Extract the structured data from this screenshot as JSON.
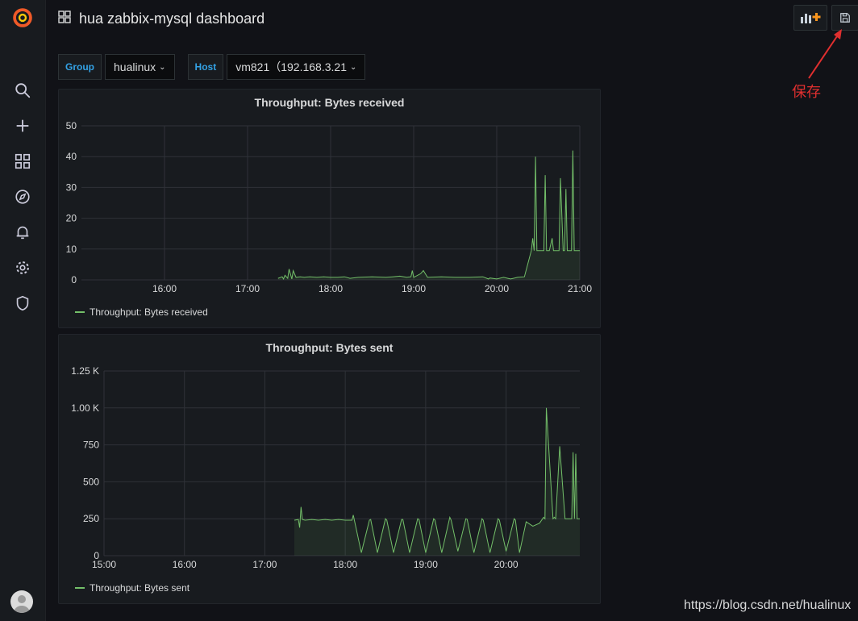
{
  "dashboard": {
    "title": "hua zabbix-mysql dashboard"
  },
  "variables": [
    {
      "label": "Group",
      "value": "hualinux"
    },
    {
      "label": "Host",
      "value": "vm821（192.168.3.21"
    }
  ],
  "annotation": {
    "text": "保存"
  },
  "watermark": "https://blog.csdn.net/hualinux",
  "colors": {
    "series": "#73bf69",
    "accent": "#33a2e5",
    "annotation": "#e02f2f"
  },
  "icons": {
    "sidebar": [
      "search-icon",
      "plus-icon",
      "dashboards-icon",
      "explore-icon",
      "alert-bell-icon",
      "gear-icon",
      "shield-icon"
    ]
  },
  "chart_data": [
    {
      "type": "line",
      "title": "Throughput: Bytes received",
      "legend": [
        "Throughput: Bytes received"
      ],
      "ylim": [
        0,
        50
      ],
      "yticks": [
        {
          "v": 0,
          "label": "0"
        },
        {
          "v": 10,
          "label": "10"
        },
        {
          "v": 20,
          "label": "20"
        },
        {
          "v": 30,
          "label": "30"
        },
        {
          "v": 40,
          "label": "40"
        },
        {
          "v": 50,
          "label": "50"
        }
      ],
      "xlim": [
        "15:00",
        "21:00"
      ],
      "xticks": [
        "16:00",
        "17:00",
        "18:00",
        "19:00",
        "20:00",
        "21:00"
      ],
      "fill": true,
      "series": [
        {
          "x": [
            "17:22",
            "17:25",
            "17:26",
            "17:27",
            "17:29",
            "17:30",
            "17:32",
            "17:33",
            "17:35",
            "17:38",
            "17:41",
            "17:45",
            "17:50",
            "17:55",
            "18:00",
            "18:05",
            "18:10",
            "18:14",
            "18:20",
            "18:30",
            "18:40",
            "18:45",
            "18:50",
            "18:55",
            "18:58",
            "18:59",
            "19:00",
            "19:05",
            "19:07",
            "19:10",
            "19:20",
            "19:30",
            "19:40",
            "19:50",
            "19:54",
            "19:55",
            "20:00",
            "20:05",
            "20:08",
            "20:10",
            "20:15",
            "20:20",
            "20:25",
            "20:26",
            "20:27",
            "20:28",
            "20:29",
            "20:30",
            "20:32",
            "20:34",
            "20:35",
            "20:36",
            "20:37",
            "20:38",
            "20:40",
            "20:41",
            "20:42",
            "20:43",
            "20:44",
            "20:45",
            "20:46",
            "20:48",
            "20:49",
            "20:50",
            "20:51",
            "20:52",
            "20:53",
            "20:54",
            "20:55",
            "20:56",
            "20:57",
            "20:58",
            "20:59",
            "21:00"
          ],
          "y": [
            0.5,
            1.0,
            0.3,
            1.5,
            0.5,
            3.5,
            0.3,
            3.0,
            0.8,
            1.0,
            0.8,
            1.0,
            0.8,
            1.0,
            0.8,
            0.8,
            1.0,
            0.5,
            0.8,
            1.0,
            0.8,
            1.0,
            1.2,
            0.8,
            1.0,
            3.0,
            0.8,
            2.0,
            3.0,
            0.8,
            1.0,
            0.8,
            0.8,
            1.0,
            0.3,
            0.6,
            0.3,
            0.8,
            0.5,
            0.3,
            0.8,
            1.0,
            9.5,
            13.5,
            9.5,
            40,
            9.5,
            9.5,
            9.5,
            9.5,
            34,
            9.5,
            9.5,
            9.5,
            13.5,
            9.5,
            9.5,
            9.5,
            9.5,
            9.5,
            33,
            9.5,
            9.5,
            29.5,
            9.5,
            9.5,
            9.5,
            9.5,
            42,
            9.5,
            9.5,
            9.5,
            9.5,
            9.5
          ]
        }
      ]
    },
    {
      "type": "line",
      "title": "Throughput: Bytes sent",
      "legend": [
        "Throughput: Bytes sent"
      ],
      "ylim": [
        0,
        1250
      ],
      "yticks": [
        {
          "v": 0,
          "label": "0"
        },
        {
          "v": 250,
          "label": "250"
        },
        {
          "v": 500,
          "label": "500"
        },
        {
          "v": 750,
          "label": "750"
        },
        {
          "v": 1000,
          "label": "1.00 K"
        },
        {
          "v": 1250,
          "label": "1.25 K"
        }
      ],
      "xlim": [
        "15:00",
        "20:55"
      ],
      "xticks": [
        "15:00",
        "16:00",
        "17:00",
        "18:00",
        "19:00",
        "20:00"
      ],
      "fill": true,
      "series": [
        {
          "x": [
            "17:22",
            "17:25",
            "17:26",
            "17:27",
            "17:28",
            "17:30",
            "17:35",
            "17:40",
            "17:45",
            "17:50",
            "17:55",
            "18:00",
            "18:05",
            "18:06",
            "18:12",
            "18:18",
            "18:19",
            "18:24",
            "18:30",
            "18:31",
            "18:36",
            "18:42",
            "18:43",
            "18:48",
            "18:54",
            "18:55",
            "19:00",
            "19:06",
            "19:07",
            "19:12",
            "19:18",
            "19:19",
            "19:24",
            "19:30",
            "19:31",
            "19:36",
            "19:42",
            "19:43",
            "19:48",
            "19:54",
            "19:55",
            "20:00",
            "20:06",
            "20:07",
            "20:10",
            "20:15",
            "20:20",
            "20:25",
            "20:28",
            "20:29",
            "20:30",
            "20:35",
            "20:36",
            "20:37",
            "20:40",
            "20:44",
            "20:45",
            "20:46",
            "20:48",
            "20:49",
            "20:50",
            "20:51",
            "20:52",
            "20:53",
            "20:54",
            "20:55"
          ],
          "y": [
            240,
            245,
            190,
            330,
            245,
            240,
            245,
            240,
            245,
            240,
            245,
            240,
            240,
            275,
            20,
            240,
            245,
            20,
            250,
            240,
            20,
            245,
            245,
            20,
            250,
            245,
            20,
            250,
            240,
            20,
            260,
            240,
            30,
            250,
            245,
            20,
            250,
            240,
            20,
            250,
            240,
            30,
            250,
            240,
            20,
            230,
            200,
            220,
            260,
            250,
            1000,
            250,
            260,
            250,
            740,
            250,
            250,
            250,
            250,
            250,
            700,
            250,
            690,
            250,
            250,
            250
          ]
        }
      ]
    }
  ]
}
